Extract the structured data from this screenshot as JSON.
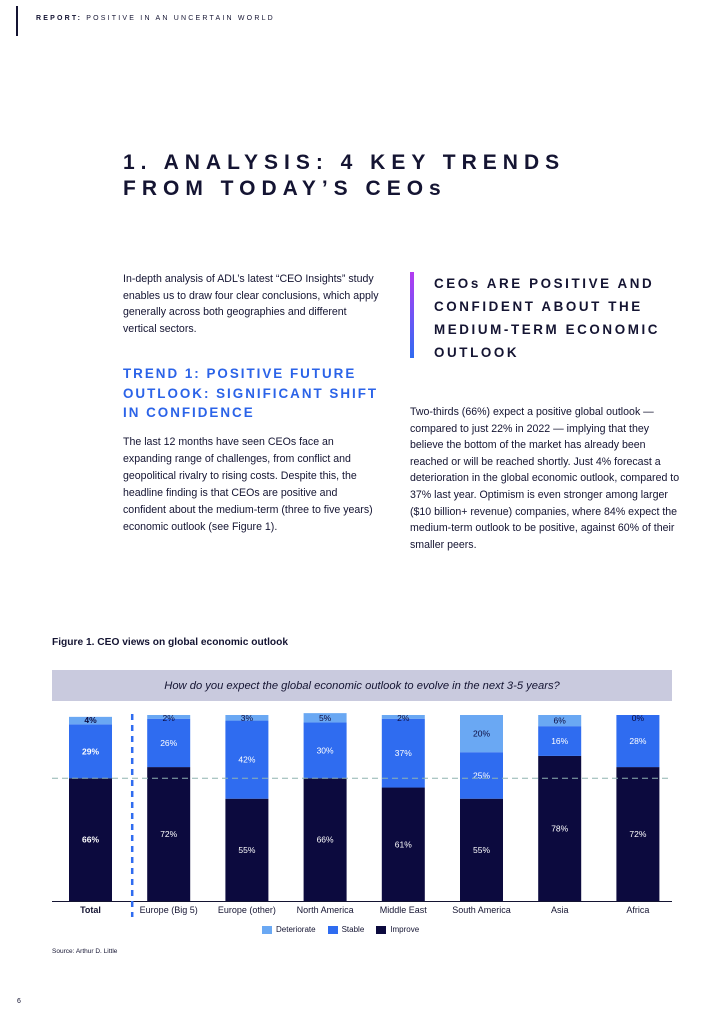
{
  "header": {
    "report_label": "REPORT:",
    "report_subtitle": "POSITIVE IN AN UNCERTAIN WORLD"
  },
  "title": {
    "line1": "1. ANALYSIS: 4 KEY TRENDS",
    "line2": "FROM TODAY’S CEOs"
  },
  "intro": "In-depth analysis of ADL’s latest “CEO Insights” study enables us to draw four clear conclusions, which apply generally across both geographies and different vertical sectors.",
  "trend1": {
    "heading": "TREND 1: POSITIVE FUTURE OUTLOOK: SIGNIFICANT SHIFT IN CONFIDENCE",
    "body": "The last 12 months have seen CEOs face an expanding range of challenges, from conflict and geopolitical rivalry to rising costs. Despite this, the headline finding is that CEOs are positive and confident about the medium-term (three to five years) economic outlook (see Figure 1)."
  },
  "callout": "CEOs ARE POSITIVE AND CONFIDENT ABOUT THE MEDIUM-TERM ECONOMIC OUTLOOK",
  "right_body": "Two-thirds (66%) expect a positive global outlook — compared to just 22% in 2022 — implying that they believe the bottom of the market has already been reached or will be reached shortly. Just 4% forecast a deterioration in the global economic outlook, compared to 37% last year. Optimism is even stronger among larger ($10 billion+ revenue) companies, where 84% expect the medium-term outlook to be positive, against 60% of their smaller peers.",
  "figure": {
    "title": "Figure 1. CEO views on global economic outlook",
    "question": "How do you expect the global economic outlook to evolve in the next 3-5 years?",
    "source": "Source: Arthur D. Little"
  },
  "page_number": "6",
  "colors": {
    "improve": "#0c0a3e",
    "stable": "#2f6cf0",
    "deteriorate": "#6aa8f3",
    "accent": "#2b63e8",
    "question_bg": "#c9cade"
  },
  "chart_data": {
    "type": "bar",
    "stacked": true,
    "orientation": "vertical",
    "categories": [
      "Total",
      "Europe (Big 5)",
      "Europe (other)",
      "North America",
      "Middle East",
      "South America",
      "Asia",
      "Africa"
    ],
    "series": [
      {
        "name": "Improve",
        "values": [
          66,
          72,
          55,
          66,
          61,
          55,
          78,
          72
        ]
      },
      {
        "name": "Stable",
        "values": [
          29,
          26,
          42,
          30,
          37,
          25,
          16,
          28
        ]
      },
      {
        "name": "Deteriorate",
        "values": [
          4,
          2,
          3,
          5,
          2,
          20,
          6,
          0
        ]
      }
    ],
    "legend": [
      "Deteriorate",
      "Stable",
      "Improve"
    ],
    "legend_position": "bottom",
    "value_labels": [
      "%",
      "%"
    ],
    "reference_line": "dashed at Total improve level",
    "ylim": [
      0,
      100
    ],
    "grid": false
  }
}
